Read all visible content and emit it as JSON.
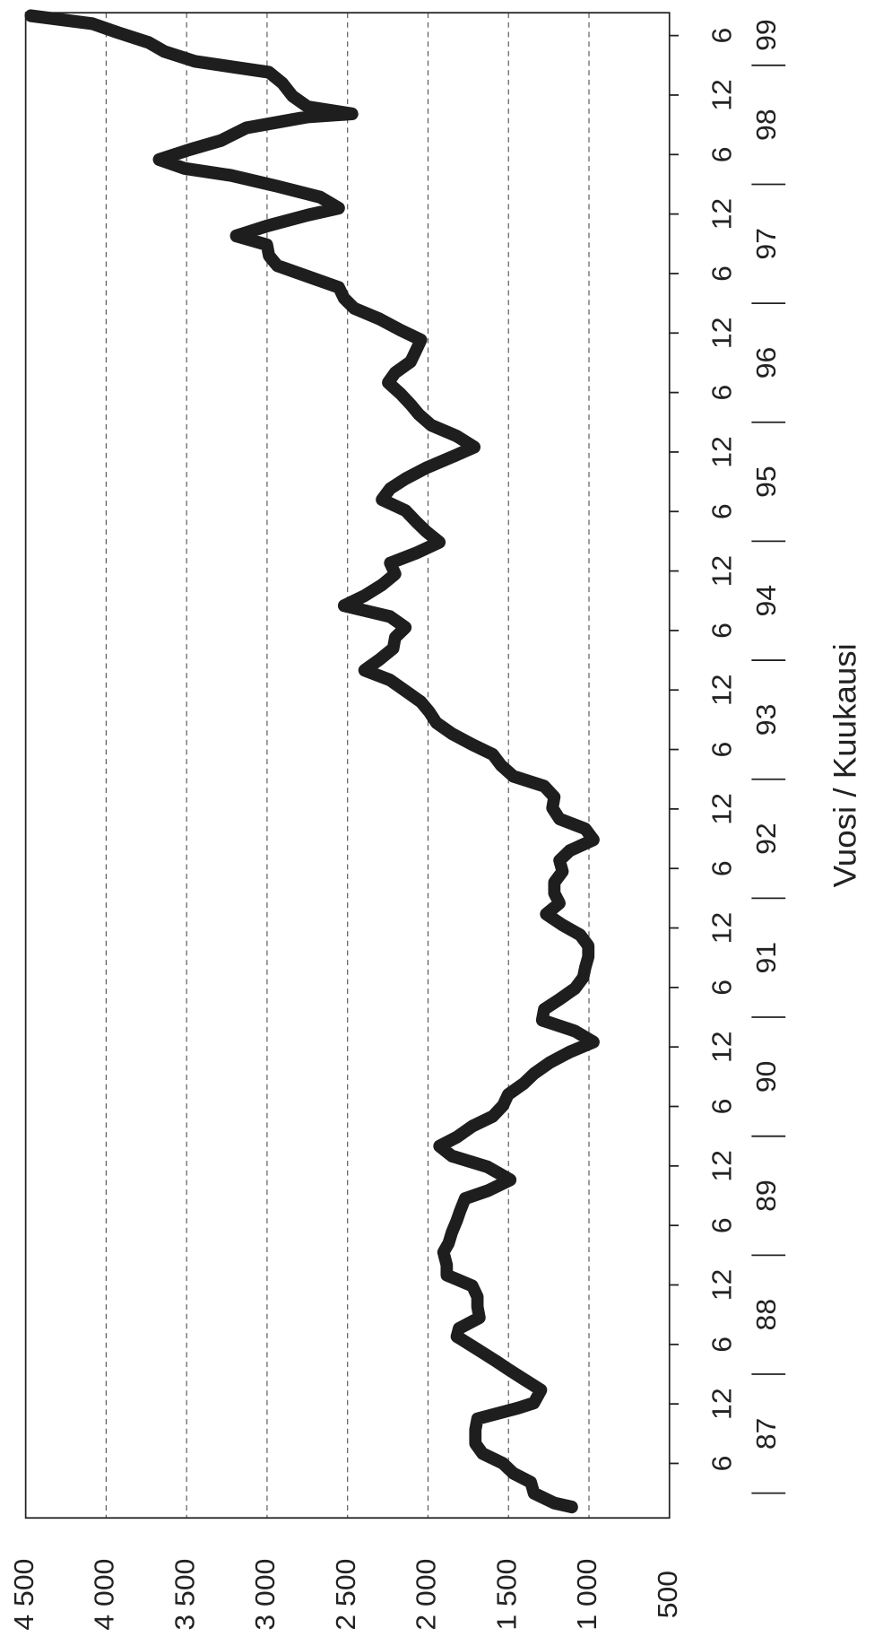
{
  "chart_data": {
    "type": "line",
    "axis_label": "Vuosi / Kuukausi",
    "color": "#1e1e1e",
    "x": [
      1.6,
      2.0,
      3.0,
      4.1,
      5.0,
      6.0,
      7.0,
      8.0,
      9.4,
      10.5,
      11.6,
      12.1,
      13.4,
      14.5,
      15.5,
      16.4,
      17.5,
      18.8,
      19.6,
      20.7,
      21.8,
      22.8,
      23.9,
      25.0,
      26.0,
      27.3,
      28.2,
      29.3,
      30.5,
      31.4,
      32.7,
      33.5,
      34.6,
      35.9,
      37.0,
      38.0,
      38.9,
      40.0,
      41.0,
      42.1,
      43.2,
      44.3,
      45.3,
      46.4,
      47.5,
      48.5,
      49.6,
      50.7,
      51.8,
      52.8,
      53.9,
      55.0,
      56.0,
      57.1,
      58.2,
      59.3,
      60.3,
      61.4,
      62.5,
      63.5,
      64.6,
      65.7,
      66.8,
      67.8,
      68.9,
      70.0,
      71.0,
      72.1,
      73.2,
      74.3,
      75.3,
      76.4,
      77.5,
      78.5,
      79.6,
      80.7,
      81.8,
      82.8,
      83.9,
      85.0,
      86.0,
      87.1,
      88.2,
      89.3,
      90.3,
      91.4,
      92.5,
      93.5,
      94.6,
      95.7,
      96.8,
      97.8,
      98.9,
      100.0,
      101.0,
      102.1,
      103.2,
      104.3,
      105.3,
      106.4,
      107.5,
      108.5,
      109.6,
      110.7,
      111.8,
      112.8,
      113.9,
      115.0,
      116.0,
      117.1,
      118.2,
      119.3,
      120.3,
      121.4,
      122.5,
      123.5,
      124.6,
      125.7,
      126.8,
      127.8,
      128.9,
      129.8,
      130.8,
      131.9,
      132.6,
      133.7,
      134.8,
      135.9,
      136.6,
      137.5,
      138.5,
      139.4,
      140.7,
      141.8,
      142.1,
      142.8,
      143.9,
      145.2,
      146.3,
      147.4,
      148.4,
      149.3,
      150.3,
      151.2,
      152.0
    ],
    "values": [
      1106,
      1215,
      1342,
      1361,
      1470,
      1534,
      1661,
      1706,
      1706,
      1693,
      1438,
      1342,
      1298,
      1406,
      1502,
      1585,
      1693,
      1821,
      1808,
      1680,
      1693,
      1693,
      1725,
      1884,
      1884,
      1904,
      1872,
      1852,
      1821,
      1802,
      1770,
      1629,
      1489,
      1629,
      1852,
      1929,
      1821,
      1725,
      1598,
      1534,
      1502,
      1406,
      1342,
      1246,
      1119,
      972,
      1087,
      1291,
      1278,
      1183,
      1087,
      1036,
      1023,
      1004,
      1004,
      1055,
      1164,
      1266,
      1183,
      1215,
      1215,
      1164,
      1183,
      1119,
      972,
      1023,
      1183,
      1227,
      1215,
      1278,
      1470,
      1546,
      1598,
      1725,
      1852,
      1948,
      1993,
      2044,
      2140,
      2235,
      2395,
      2299,
      2216,
      2204,
      2140,
      2235,
      2522,
      2395,
      2286,
      2204,
      2235,
      2076,
      1929,
      2012,
      2076,
      2140,
      2286,
      2235,
      2140,
      2012,
      1852,
      1712,
      1821,
      1980,
      2057,
      2108,
      2172,
      2248,
      2204,
      2108,
      2076,
      2044,
      2172,
      2299,
      2459,
      2522,
      2554,
      2746,
      2937,
      2988,
      3001,
      3192,
      3001,
      2746,
      2554,
      2670,
      2937,
      3224,
      3511,
      3671,
      3480,
      3288,
      3128,
      2746,
      2471,
      2746,
      2842,
      2905,
      2988,
      3448,
      3639,
      3735,
      3926,
      4085,
      4468
    ],
    "xlim": [
      0.5,
      152.3
    ],
    "xticks": [
      {
        "value": 6,
        "label": "6"
      },
      {
        "value": 12,
        "label": "12"
      },
      {
        "value": 18,
        "label": "6"
      },
      {
        "value": 24,
        "label": "12"
      },
      {
        "value": 30,
        "label": "6"
      },
      {
        "value": 36,
        "label": "12"
      },
      {
        "value": 42,
        "label": "6"
      },
      {
        "value": 48,
        "label": "12"
      },
      {
        "value": 54,
        "label": "6"
      },
      {
        "value": 60,
        "label": "12"
      },
      {
        "value": 66,
        "label": "6"
      },
      {
        "value": 72,
        "label": "12"
      },
      {
        "value": 78,
        "label": "6"
      },
      {
        "value": 84,
        "label": "12"
      },
      {
        "value": 90,
        "label": "6"
      },
      {
        "value": 96,
        "label": "12"
      },
      {
        "value": 102,
        "label": "6"
      },
      {
        "value": 108,
        "label": "12"
      },
      {
        "value": 114,
        "label": "6"
      },
      {
        "value": 120,
        "label": "12"
      },
      {
        "value": 126,
        "label": "6"
      },
      {
        "value": 132,
        "label": "12"
      },
      {
        "value": 138,
        "label": "6"
      },
      {
        "value": 144,
        "label": "12"
      },
      {
        "value": 150,
        "label": "6"
      }
    ],
    "year_labels": [
      "87",
      "88",
      "89",
      "90",
      "91",
      "92",
      "93",
      "94",
      "95",
      "96",
      "97",
      "98",
      "99"
    ],
    "ylim": [
      500,
      4500
    ],
    "yticks": [
      {
        "value": 500,
        "label": "500"
      },
      {
        "value": 1000,
        "label": "1 000"
      },
      {
        "value": 1500,
        "label": "1 500"
      },
      {
        "value": 2000,
        "label": "2 000"
      },
      {
        "value": 2500,
        "label": "2 500"
      },
      {
        "value": 3000,
        "label": "3 000"
      },
      {
        "value": 3500,
        "label": "3 500"
      },
      {
        "value": 4000,
        "label": "4 000"
      },
      {
        "value": 4500,
        "label": "4 500"
      }
    ],
    "grid": true
  }
}
